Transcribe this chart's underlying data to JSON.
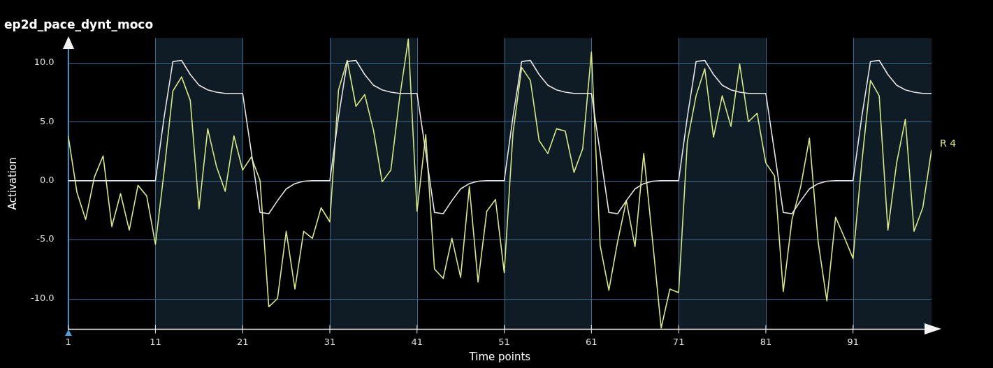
{
  "chart_data": {
    "type": "line",
    "title": "ep2d_pace_dynt_moco",
    "xlabel": "Time points",
    "ylabel": "Activation",
    "x": [
      1,
      2,
      3,
      4,
      5,
      6,
      7,
      8,
      9,
      10,
      11,
      12,
      13,
      14,
      15,
      16,
      17,
      18,
      19,
      20,
      21,
      22,
      23,
      24,
      25,
      26,
      27,
      28,
      29,
      30,
      31,
      32,
      33,
      34,
      35,
      36,
      37,
      38,
      39,
      40,
      41,
      42,
      43,
      44,
      45,
      46,
      47,
      48,
      49,
      50,
      51,
      52,
      53,
      54,
      55,
      56,
      57,
      58,
      59,
      60,
      61,
      62,
      63,
      64,
      65,
      66,
      67,
      68,
      69,
      70,
      71,
      72,
      73,
      74,
      75,
      76,
      77,
      78,
      79,
      80,
      81,
      82,
      83,
      84,
      85,
      86,
      87,
      88,
      89,
      90,
      91,
      92,
      93,
      94,
      95,
      96,
      97,
      98,
      99,
      100
    ],
    "series": [
      {
        "color": "#e6e6e6",
        "values": [
          0,
          0,
          0,
          0,
          0,
          0,
          0,
          0,
          0,
          0,
          0,
          5.4,
          10.1,
          10.2,
          9.0,
          8.1,
          7.7,
          7.5,
          7.4,
          7.4,
          7.4,
          2.4,
          -2.7,
          -2.8,
          -1.7,
          -0.7,
          -0.25,
          -0.05,
          0,
          0,
          0,
          5.4,
          10.1,
          10.2,
          9.0,
          8.1,
          7.7,
          7.5,
          7.4,
          7.4,
          7.4,
          2.4,
          -2.7,
          -2.8,
          -1.7,
          -0.7,
          -0.25,
          -0.05,
          0,
          0,
          0,
          5.4,
          10.1,
          10.2,
          9.0,
          8.1,
          7.7,
          7.5,
          7.4,
          7.4,
          7.4,
          2.4,
          -2.7,
          -2.8,
          -1.7,
          -0.7,
          -0.25,
          -0.05,
          0,
          0,
          0,
          5.4,
          10.1,
          10.2,
          9.0,
          8.1,
          7.7,
          7.5,
          7.4,
          7.4,
          7.4,
          2.4,
          -2.7,
          -2.8,
          -1.7,
          -0.7,
          -0.25,
          -0.05,
          0,
          0,
          0,
          5.4,
          10.1,
          10.2,
          9.0,
          8.1,
          7.7,
          7.5,
          7.4,
          7.4
        ]
      },
      {
        "name": "R 4",
        "color": "#d6ea84",
        "values": [
          3.8,
          -1,
          -3.3,
          0.3,
          2.1,
          -3.9,
          -1.1,
          -4.2,
          -0.4,
          -1.3,
          -5.4,
          0.8,
          7.6,
          8.8,
          6.8,
          -2.4,
          4.4,
          1.2,
          -0.9,
          3.8,
          0.9,
          2.0,
          0.0,
          -10.7,
          -10.0,
          -4.3,
          -9.2,
          -4.3,
          -4.9,
          -2.3,
          -3.5,
          7.7,
          10.2,
          6.3,
          7.3,
          4.3,
          -0.1,
          0.9,
          7.0,
          12.0,
          -2.6,
          3.9,
          -7.5,
          -8.3,
          -4.9,
          -8.2,
          -0.5,
          -8.6,
          -2.6,
          -1.6,
          -7.8,
          4.0,
          9.6,
          8.5,
          3.4,
          2.3,
          4.4,
          4.2,
          0.7,
          2.7,
          10.9,
          -5.5,
          -9.3,
          -5.2,
          -1.7,
          -5.6,
          2.3,
          -5.0,
          -12.5,
          -9.2,
          -9.5,
          3.3,
          7.2,
          9.5,
          3.7,
          7.2,
          4.6,
          9.9,
          5.0,
          5.7,
          1.5,
          0.4,
          -9.4,
          -3.3,
          -0.5,
          3.6,
          -5.2,
          -10.2,
          -3.1,
          -4.8,
          -6.6,
          1.5,
          8.5,
          7.2,
          -4.2,
          1.5,
          5.2,
          -4.3,
          -2.3,
          2.6
        ]
      }
    ],
    "xlim": [
      1,
      100
    ],
    "xticks": [
      1,
      11,
      21,
      31,
      41,
      51,
      61,
      71,
      81,
      91
    ],
    "ylim": [
      -12.6,
      12.1
    ],
    "yticks": [
      {
        "value": -10,
        "label": "-10.0"
      },
      {
        "value": -5,
        "label": "-5.0"
      },
      {
        "value": 0,
        "label": "0.0"
      },
      {
        "value": 5,
        "label": "5.0"
      },
      {
        "value": 10,
        "label": "10.0"
      }
    ],
    "bands": [
      {
        "axis": "x",
        "from": 11,
        "to": 21,
        "color": "#0f1b25"
      },
      {
        "axis": "x",
        "from": 31,
        "to": 41,
        "color": "#0f1b25"
      },
      {
        "axis": "x",
        "from": 51,
        "to": 61,
        "color": "#0f1b25"
      },
      {
        "axis": "x",
        "from": 71,
        "to": 81,
        "color": "#0f1b25"
      },
      {
        "axis": "x",
        "from": 91,
        "to": 100,
        "color": "#0f1b25"
      }
    ],
    "grid": true,
    "marker": "none",
    "line_style": "solid"
  }
}
